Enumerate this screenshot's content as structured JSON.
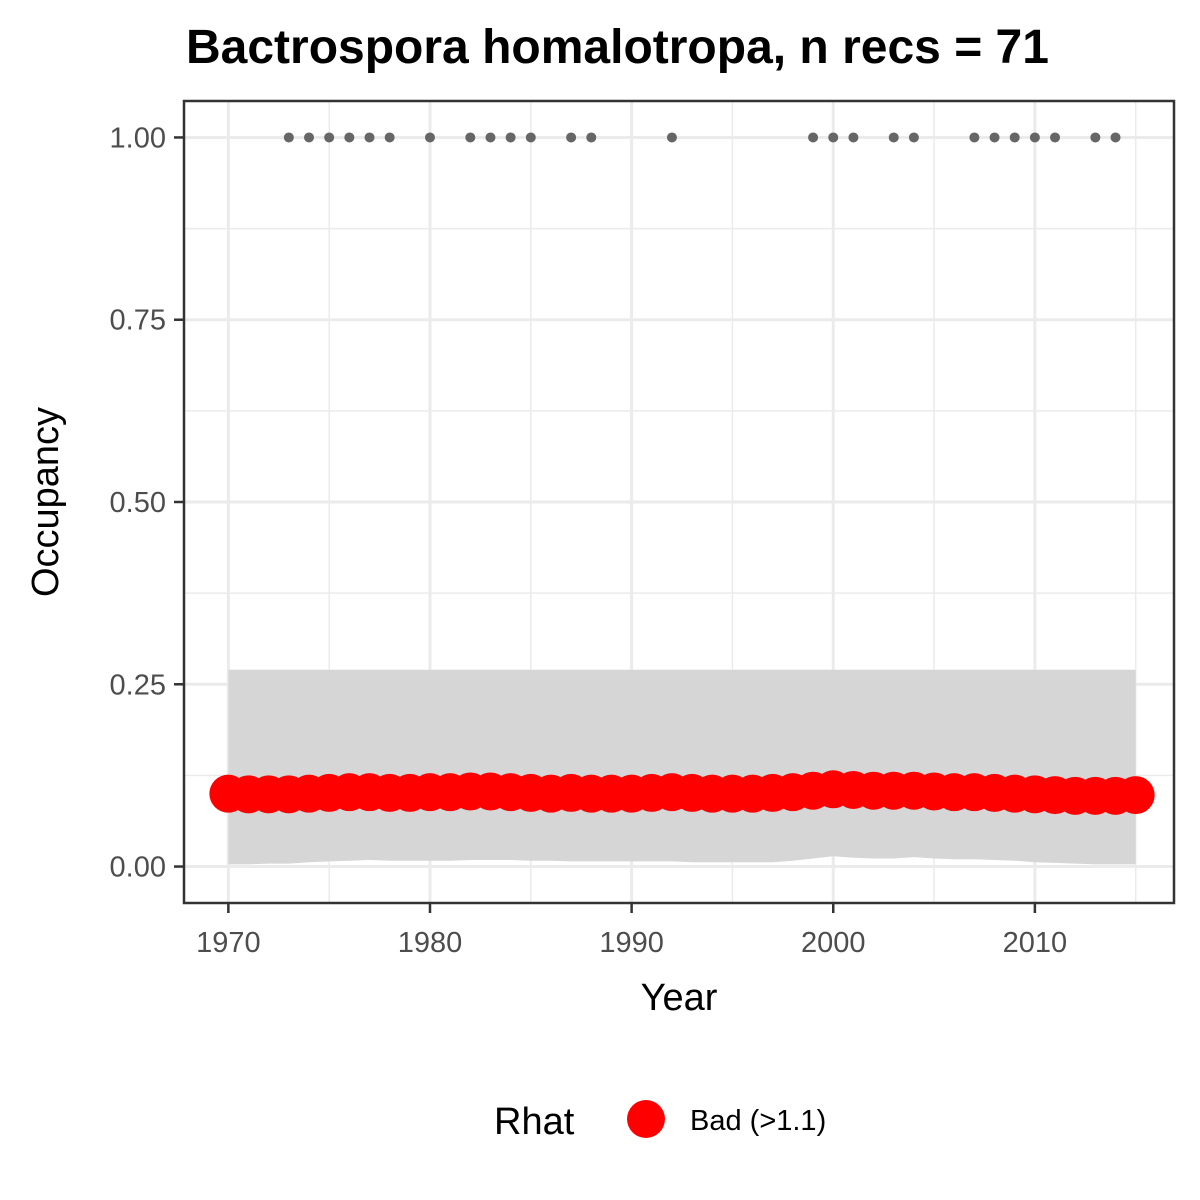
{
  "chart_data": {
    "type": "scatter",
    "title": "Bactrospora homalotropa, n recs = 71",
    "xlabel": "Year",
    "ylabel": "Occupancy",
    "xlim": [
      1967.8,
      2016.9
    ],
    "ylim": [
      -0.05,
      1.05
    ],
    "x_ticks": [
      1970,
      1980,
      1990,
      2000,
      2010
    ],
    "y_ticks": [
      0,
      0.25,
      0.5,
      0.75,
      1
    ],
    "y_tick_labels": [
      "0.00",
      "0.25",
      "0.50",
      "0.75",
      "1.00"
    ],
    "grid": true,
    "legend": {
      "title": "Rhat",
      "position": "bottom",
      "entries": [
        {
          "label": "Bad (>1.1)",
          "color": "#ff0000"
        }
      ]
    },
    "colors": {
      "occupancy_points": "#ff0000",
      "record_points": "#666666",
      "ribbon": "#d6d6d6",
      "grid": "#ebebeb",
      "panel_border": "#333333"
    },
    "series": [
      {
        "name": "Bad (>1.1)",
        "x": [
          1970,
          1971,
          1972,
          1973,
          1974,
          1975,
          1976,
          1977,
          1978,
          1979,
          1980,
          1981,
          1982,
          1983,
          1984,
          1985,
          1986,
          1987,
          1988,
          1989,
          1990,
          1991,
          1992,
          1993,
          1994,
          1995,
          1996,
          1997,
          1998,
          1999,
          2000,
          2001,
          2002,
          2003,
          2004,
          2005,
          2006,
          2007,
          2008,
          2009,
          2010,
          2011,
          2012,
          2013,
          2014,
          2015
        ],
        "y": [
          0.1,
          0.099,
          0.099,
          0.099,
          0.1,
          0.101,
          0.102,
          0.102,
          0.101,
          0.101,
          0.102,
          0.102,
          0.103,
          0.103,
          0.102,
          0.101,
          0.1,
          0.101,
          0.1,
          0.1,
          0.1,
          0.101,
          0.102,
          0.101,
          0.1,
          0.1,
          0.1,
          0.101,
          0.102,
          0.104,
          0.106,
          0.105,
          0.104,
          0.104,
          0.104,
          0.103,
          0.102,
          0.102,
          0.101,
          0.1,
          0.099,
          0.098,
          0.097,
          0.097,
          0.097,
          0.098
        ],
        "ci_lower": [
          0.003,
          0.003,
          0.004,
          0.004,
          0.006,
          0.007,
          0.008,
          0.009,
          0.008,
          0.008,
          0.008,
          0.008,
          0.009,
          0.009,
          0.009,
          0.008,
          0.008,
          0.007,
          0.007,
          0.007,
          0.007,
          0.007,
          0.007,
          0.006,
          0.006,
          0.006,
          0.006,
          0.006,
          0.008,
          0.011,
          0.014,
          0.012,
          0.011,
          0.011,
          0.013,
          0.011,
          0.01,
          0.01,
          0.009,
          0.008,
          0.006,
          0.005,
          0.004,
          0.003,
          0.003,
          0.003
        ],
        "ci_upper": [
          0.27,
          0.27,
          0.27,
          0.27,
          0.27,
          0.27,
          0.27,
          0.27,
          0.27,
          0.27,
          0.27,
          0.27,
          0.27,
          0.27,
          0.27,
          0.27,
          0.27,
          0.27,
          0.27,
          0.27,
          0.27,
          0.27,
          0.27,
          0.27,
          0.27,
          0.27,
          0.27,
          0.27,
          0.27,
          0.27,
          0.27,
          0.27,
          0.27,
          0.27,
          0.27,
          0.27,
          0.27,
          0.27,
          0.27,
          0.27,
          0.27,
          0.27,
          0.27,
          0.27,
          0.27,
          0.27
        ]
      }
    ],
    "records": {
      "x": [
        1973,
        1974,
        1975,
        1976,
        1977,
        1978,
        1980,
        1982,
        1983,
        1984,
        1985,
        1987,
        1988,
        1992,
        1999,
        2000,
        2001,
        2003,
        2004,
        2007,
        2008,
        2009,
        2010,
        2011,
        2013,
        2014
      ],
      "y": [
        1,
        1,
        1,
        1,
        1,
        1,
        1,
        1,
        1,
        1,
        1,
        1,
        1,
        1,
        1,
        1,
        1,
        1,
        1,
        1,
        1,
        1,
        1,
        1,
        1,
        1
      ]
    }
  }
}
